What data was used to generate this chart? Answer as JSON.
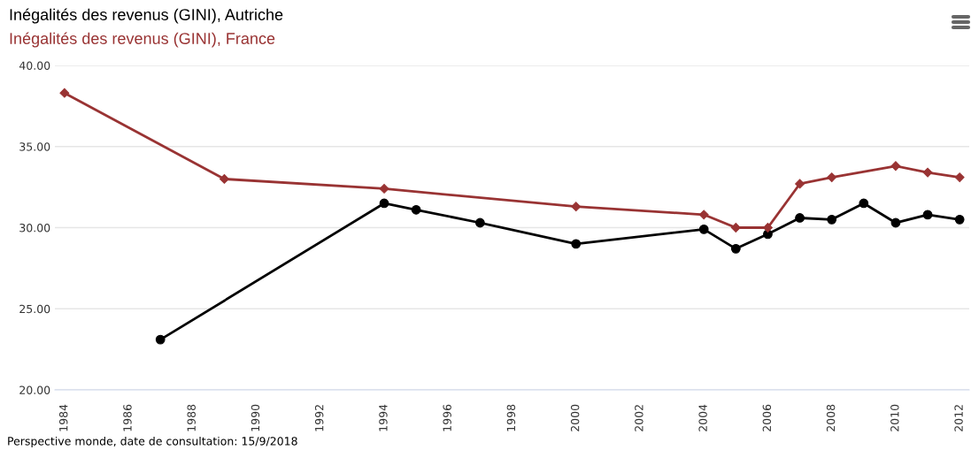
{
  "chart_data": {
    "type": "line",
    "series": [
      {
        "name": "Inégalités des revenus (GINI), Autriche",
        "color": "#000000",
        "marker": "circle",
        "x": [
          1987,
          1994,
          1995,
          1997,
          2000,
          2004,
          2005,
          2006,
          2007,
          2008,
          2009,
          2010,
          2011,
          2012
        ],
        "values": [
          23.1,
          31.5,
          31.1,
          30.3,
          29.0,
          29.9,
          28.7,
          29.6,
          30.6,
          30.5,
          31.5,
          30.3,
          30.8,
          30.5
        ]
      },
      {
        "name": "Inégalités des revenus (GINI), France",
        "color": "#993333",
        "marker": "diamond",
        "x": [
          1984,
          1989,
          1994,
          2000,
          2004,
          2005,
          2006,
          2007,
          2008,
          2010,
          2011,
          2012
        ],
        "values": [
          38.3,
          33.0,
          32.4,
          31.3,
          30.8,
          30.0,
          30.0,
          32.7,
          33.1,
          33.8,
          33.4,
          33.1
        ]
      }
    ],
    "xlim": [
      1983.7,
      2012.3
    ],
    "xticks": [
      1984,
      1986,
      1988,
      1990,
      1992,
      1994,
      1996,
      1998,
      2000,
      2002,
      2004,
      2006,
      2008,
      2010,
      2012
    ],
    "ylim": [
      20,
      40
    ],
    "yticks": [
      {
        "value": 20,
        "label": "20.00"
      },
      {
        "value": 25,
        "label": "25.00"
      },
      {
        "value": 30,
        "label": "30.00"
      },
      {
        "value": 35,
        "label": "35.00"
      },
      {
        "value": 40,
        "label": "40.00"
      }
    ],
    "grid": "y",
    "line_style": "solid",
    "annotations": [
      "Perspective monde, date de consultation: 15/9/2018"
    ]
  }
}
